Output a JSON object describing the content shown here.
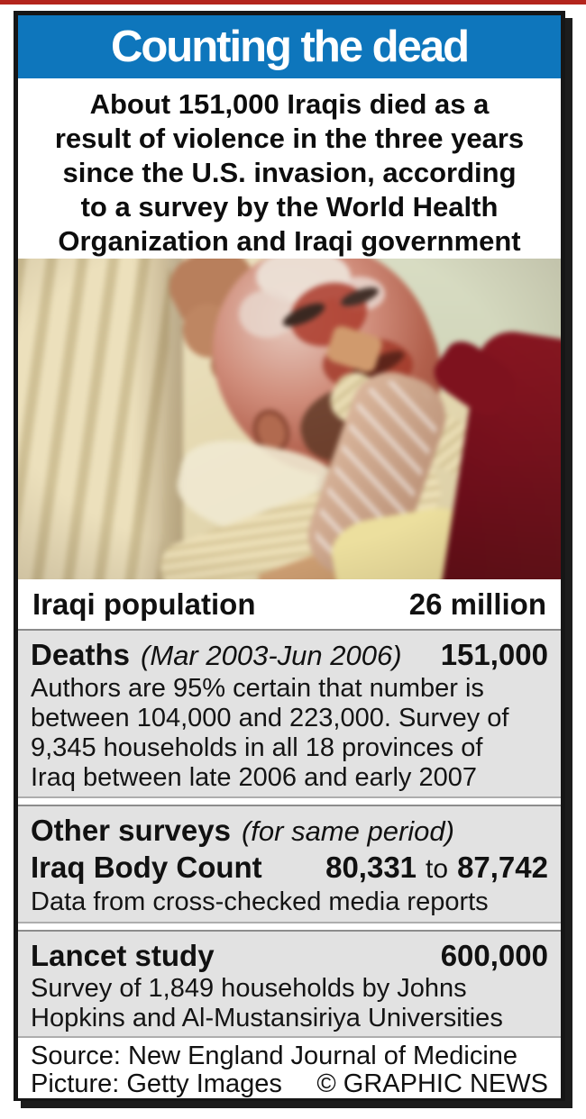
{
  "colors": {
    "accent_blue": "#0e76bc",
    "strip_red": "#b4251d",
    "box_gray": "#e2e2e2",
    "box_border_gray": "#8c8c8c",
    "frame_black": "#161616",
    "headline_text": "#ffffff"
  },
  "header": {
    "title": "Counting the dead"
  },
  "intro": {
    "lines": [
      "About 151,000 Iraqis died as a",
      "result of violence in the three years",
      "since the U.S. invasion, according",
      "to a survey by the World Health",
      "Organization and Iraqi government"
    ]
  },
  "photo": {
    "description": "Injured man with burned face and bandaged chest lying in a hospital bed, a hand touching his head, dark red blanket at right"
  },
  "population": {
    "label": "Iraqi population",
    "value": "26 million"
  },
  "deaths": {
    "label": "Deaths",
    "period": "(Mar 2003-Jun 2006)",
    "value": "151,000",
    "body_lines": [
      "Authors are 95% certain that number is",
      "between 104,000 and 223,000. Survey of",
      "9,345 households in all 18 provinces of",
      "Iraq between late 2006 and early 2007"
    ]
  },
  "other_surveys": {
    "label": "Other surveys",
    "period": "(for same period)",
    "ibc_label": "Iraq Body Count",
    "ibc_low": "80,331",
    "ibc_conjunction": "to",
    "ibc_high": "87,742",
    "note": "Data from cross-checked media reports"
  },
  "lancet": {
    "label": "Lancet study",
    "value": "600,000",
    "body_lines": [
      "Survey of 1,849 households by Johns",
      "Hopkins and Al-Mustansiriya Universities"
    ]
  },
  "footer": {
    "source": "Source: New England Journal of Medicine",
    "picture": "Picture: Getty Images",
    "copyright": "© GRAPHIC NEWS"
  }
}
